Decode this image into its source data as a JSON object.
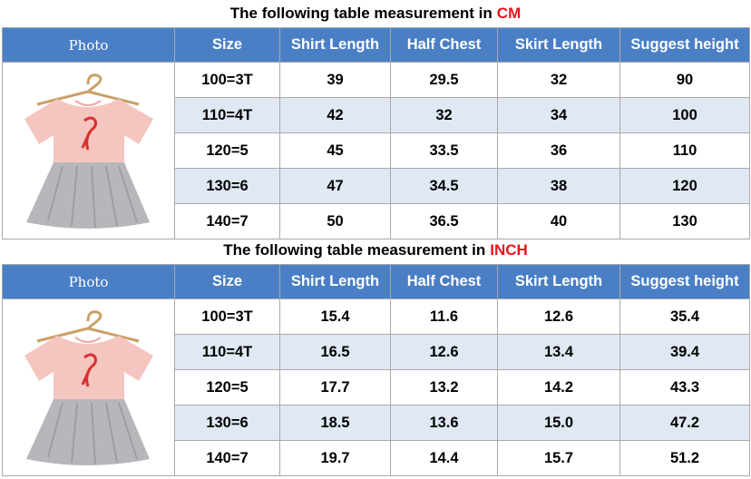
{
  "tables": [
    {
      "title": "The following table measurement in",
      "unit": "CM",
      "headers": [
        "Photo",
        "Size",
        "Shirt Length",
        "Half Chest",
        "Skirt Length",
        "Suggest height"
      ],
      "rows": [
        [
          "100=3T",
          "39",
          "29.5",
          "32",
          "90"
        ],
        [
          "110=4T",
          "42",
          "32",
          "34",
          "100"
        ],
        [
          "120=5",
          "45",
          "33.5",
          "36",
          "110"
        ],
        [
          "130=6",
          "47",
          "34.5",
          "38",
          "120"
        ],
        [
          "140=7",
          "50",
          "36.5",
          "40",
          "130"
        ]
      ]
    },
    {
      "title": "The following table measurement in",
      "unit": "INCH",
      "headers": [
        "Photo",
        "Size",
        "Shirt Length",
        "Half Chest",
        "Skirt Length",
        "Suggest height"
      ],
      "rows": [
        [
          "100=3T",
          "15.4",
          "11.6",
          "12.6",
          "35.4"
        ],
        [
          "110=4T",
          "16.5",
          "12.6",
          "13.4",
          "39.4"
        ],
        [
          "120=5",
          "17.7",
          "13.2",
          "14.2",
          "43.3"
        ],
        [
          "130=6",
          "18.5",
          "13.6",
          "15.0",
          "47.2"
        ],
        [
          "140=7",
          "19.7",
          "14.4",
          "15.7",
          "51.2"
        ]
      ]
    }
  ],
  "colors": {
    "header_bg": "#4a7fc5",
    "stripe_bg": "#dfe8f3",
    "unit_text": "#e8141a"
  },
  "photo": {
    "icon": "dress-product-photo",
    "shirt_color": "#f5c5c0",
    "skirt_color": "#b6b6bb"
  }
}
